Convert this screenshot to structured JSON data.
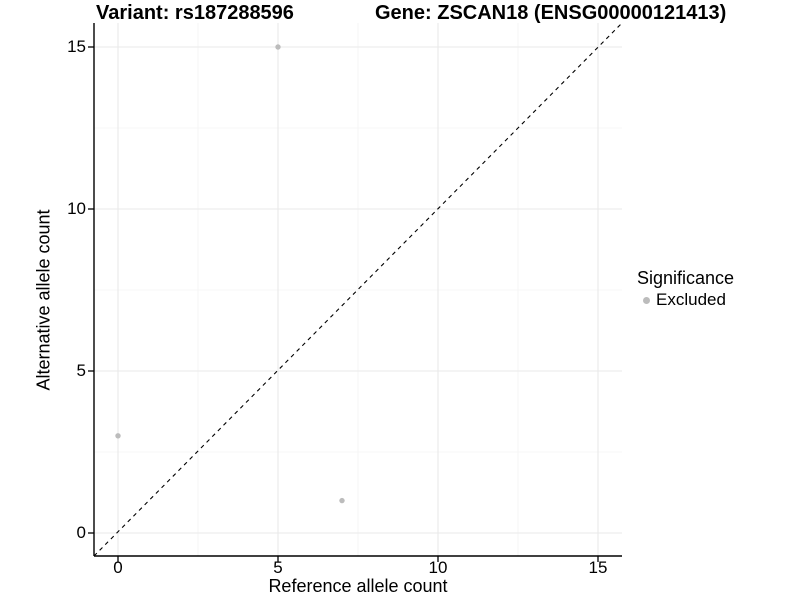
{
  "header": {
    "variant_title": "Variant: rs187288596",
    "gene_title": "Gene: ZSCAN18 (ENSG00000121413)"
  },
  "axes": {
    "x": {
      "label": "Reference allele count",
      "ticks": [
        0,
        5,
        10,
        15
      ],
      "minor_ticks": [
        2.5,
        7.5,
        12.5
      ],
      "range": [
        -0.75,
        15.75
      ]
    },
    "y": {
      "label": "Alternative allele count",
      "ticks": [
        0,
        5,
        10,
        15
      ],
      "minor_ticks": [
        2.5,
        7.5,
        12.5
      ],
      "range": [
        -0.75,
        15.75
      ]
    }
  },
  "legend": {
    "title": "Significance",
    "position": "right",
    "items": [
      {
        "label": "Excluded",
        "color": "#bcbcbc"
      }
    ]
  },
  "chart_data": {
    "type": "scatter",
    "title": "Variant: rs187288596 | Gene: ZSCAN18 (ENSG00000121413)",
    "xlabel": "Reference allele count",
    "ylabel": "Alternative allele count",
    "xlim": [
      -0.75,
      15.75
    ],
    "ylim": [
      -0.75,
      15.75
    ],
    "grid": true,
    "legend_position": "right",
    "series": [
      {
        "name": "Excluded",
        "color": "#bcbcbc",
        "points": [
          {
            "x": 0,
            "y": 3
          },
          {
            "x": 5,
            "y": 15
          },
          {
            "x": 7,
            "y": 1
          }
        ]
      }
    ],
    "reference_line": {
      "kind": "identity",
      "equation": "y = x",
      "style": "dashed",
      "color": "#000000"
    },
    "colors": {
      "point": "#bcbcbc",
      "grid_major": "#e9e9e9",
      "grid_minor": "#f4f4f4",
      "axis": "#000000",
      "background": "#ffffff"
    }
  }
}
